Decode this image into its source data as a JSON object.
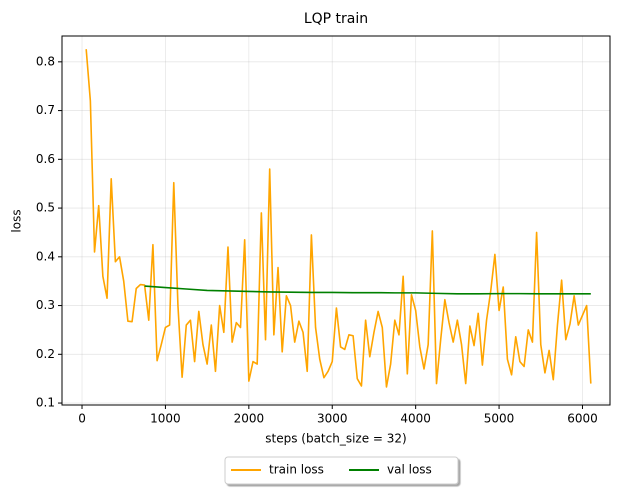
{
  "chart_data": {
    "type": "line",
    "title": "LQP train",
    "x_label": "steps (batch_size = 32)",
    "y_label": "loss",
    "xlim": [
      -240,
      6330
    ],
    "ylim": [
      0.096,
      0.853
    ],
    "xticks": [
      0,
      1000,
      2000,
      3000,
      4000,
      5000,
      6000
    ],
    "yticks": [
      0.1,
      0.2,
      0.3,
      0.4,
      0.5,
      0.6,
      0.7,
      0.8
    ],
    "grid": true,
    "legend": "below",
    "series": [
      {
        "name": "train loss",
        "color": "#ffa500",
        "x": [
          50,
          100,
          150,
          200,
          250,
          300,
          350,
          400,
          450,
          500,
          550,
          600,
          650,
          700,
          750,
          800,
          850,
          900,
          950,
          1000,
          1050,
          1100,
          1150,
          1200,
          1250,
          1300,
          1350,
          1400,
          1450,
          1500,
          1550,
          1600,
          1650,
          1700,
          1750,
          1800,
          1850,
          1900,
          1950,
          2000,
          2050,
          2100,
          2150,
          2200,
          2250,
          2300,
          2350,
          2400,
          2450,
          2500,
          2550,
          2600,
          2650,
          2700,
          2750,
          2800,
          2850,
          2900,
          2950,
          3000,
          3050,
          3100,
          3150,
          3200,
          3250,
          3300,
          3350,
          3400,
          3450,
          3500,
          3550,
          3600,
          3650,
          3700,
          3750,
          3800,
          3850,
          3900,
          3950,
          4000,
          4050,
          4100,
          4150,
          4200,
          4250,
          4300,
          4350,
          4400,
          4450,
          4500,
          4550,
          4600,
          4650,
          4700,
          4750,
          4800,
          4850,
          4900,
          4950,
          5000,
          5050,
          5100,
          5150,
          5200,
          5250,
          5300,
          5350,
          5400,
          5450,
          5500,
          5550,
          5600,
          5650,
          5700,
          5750,
          5800,
          5850,
          5900,
          5950,
          6000,
          6050,
          6100
        ],
        "values": [
          0.826,
          0.72,
          0.41,
          0.505,
          0.36,
          0.315,
          0.56,
          0.39,
          0.4,
          0.35,
          0.268,
          0.267,
          0.335,
          0.343,
          0.342,
          0.27,
          0.425,
          0.187,
          0.22,
          0.255,
          0.26,
          0.552,
          0.3,
          0.153,
          0.26,
          0.27,
          0.185,
          0.288,
          0.22,
          0.18,
          0.26,
          0.165,
          0.3,
          0.245,
          0.42,
          0.225,
          0.265,
          0.255,
          0.435,
          0.145,
          0.185,
          0.18,
          0.49,
          0.23,
          0.58,
          0.24,
          0.378,
          0.205,
          0.32,
          0.3,
          0.225,
          0.268,
          0.245,
          0.165,
          0.445,
          0.255,
          0.19,
          0.152,
          0.165,
          0.185,
          0.295,
          0.215,
          0.21,
          0.24,
          0.238,
          0.15,
          0.135,
          0.27,
          0.195,
          0.245,
          0.288,
          0.255,
          0.133,
          0.18,
          0.27,
          0.24,
          0.36,
          0.16,
          0.322,
          0.29,
          0.215,
          0.17,
          0.22,
          0.453,
          0.14,
          0.23,
          0.312,
          0.265,
          0.225,
          0.27,
          0.22,
          0.14,
          0.258,
          0.218,
          0.284,
          0.178,
          0.27,
          0.33,
          0.405,
          0.29,
          0.338,
          0.19,
          0.158,
          0.236,
          0.185,
          0.175,
          0.25,
          0.225,
          0.45,
          0.22,
          0.162,
          0.208,
          0.148,
          0.26,
          0.352,
          0.23,
          0.262,
          0.32,
          0.26,
          0.28,
          0.3,
          0.14
        ]
      },
      {
        "name": "val loss",
        "color": "#008000",
        "x": [
          750,
          1000,
          1250,
          1500,
          1750,
          2000,
          2250,
          2500,
          2750,
          3000,
          3250,
          3500,
          3750,
          4000,
          4250,
          4500,
          4750,
          5000,
          5250,
          5500,
          5750,
          6100
        ],
        "values": [
          0.34,
          0.337,
          0.334,
          0.331,
          0.33,
          0.329,
          0.328,
          0.3275,
          0.327,
          0.327,
          0.3265,
          0.3265,
          0.326,
          0.326,
          0.325,
          0.324,
          0.324,
          0.3245,
          0.3245,
          0.324,
          0.324,
          0.324
        ]
      }
    ]
  }
}
